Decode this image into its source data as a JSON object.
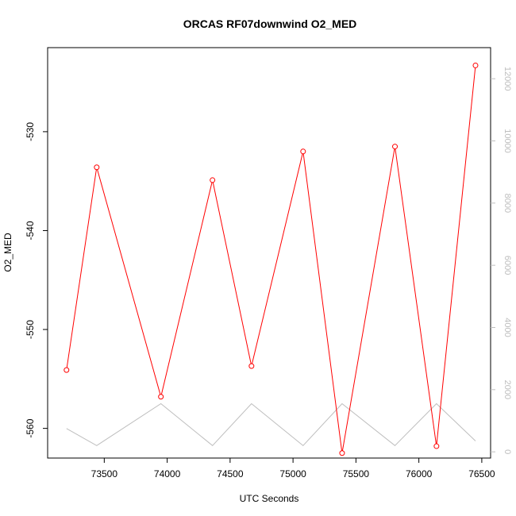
{
  "chart_data": {
    "type": "line",
    "title": "ORCAS RF07downwind O2_MED",
    "xlabel": "UTC Seconds",
    "ylabel": "O2_MED",
    "xlim": [
      73050,
      76570
    ],
    "ylim": [
      -563.0,
      -521.5
    ],
    "y2lim": [
      -200,
      13000
    ],
    "xticks": [
      73500,
      74000,
      74500,
      75000,
      75500,
      76000,
      76500
    ],
    "yticks": [
      -560,
      -550,
      -540,
      -530
    ],
    "y2ticks": [
      0,
      2000,
      4000,
      6000,
      8000,
      10000,
      12000
    ],
    "grid": false,
    "legend": "none",
    "series": [
      {
        "color": "#ff0000",
        "axis": "left",
        "markers": "open-circle",
        "x": [
          73200,
          73440,
          73950,
          74360,
          74670,
          75080,
          75390,
          75810,
          76140,
          76450
        ],
        "y": [
          -554.1,
          -533.6,
          -556.8,
          -534.9,
          -553.7,
          -532.0,
          -562.5,
          -531.5,
          -561.8,
          -523.3
        ]
      },
      {
        "color": "#bebebe",
        "axis": "right",
        "markers": "none",
        "x": [
          73200,
          73440,
          73950,
          74360,
          74670,
          75080,
          75390,
          75810,
          76140,
          76450
        ],
        "y": [
          750,
          200,
          1550,
          200,
          1550,
          200,
          1550,
          200,
          1550,
          350
        ]
      }
    ]
  }
}
